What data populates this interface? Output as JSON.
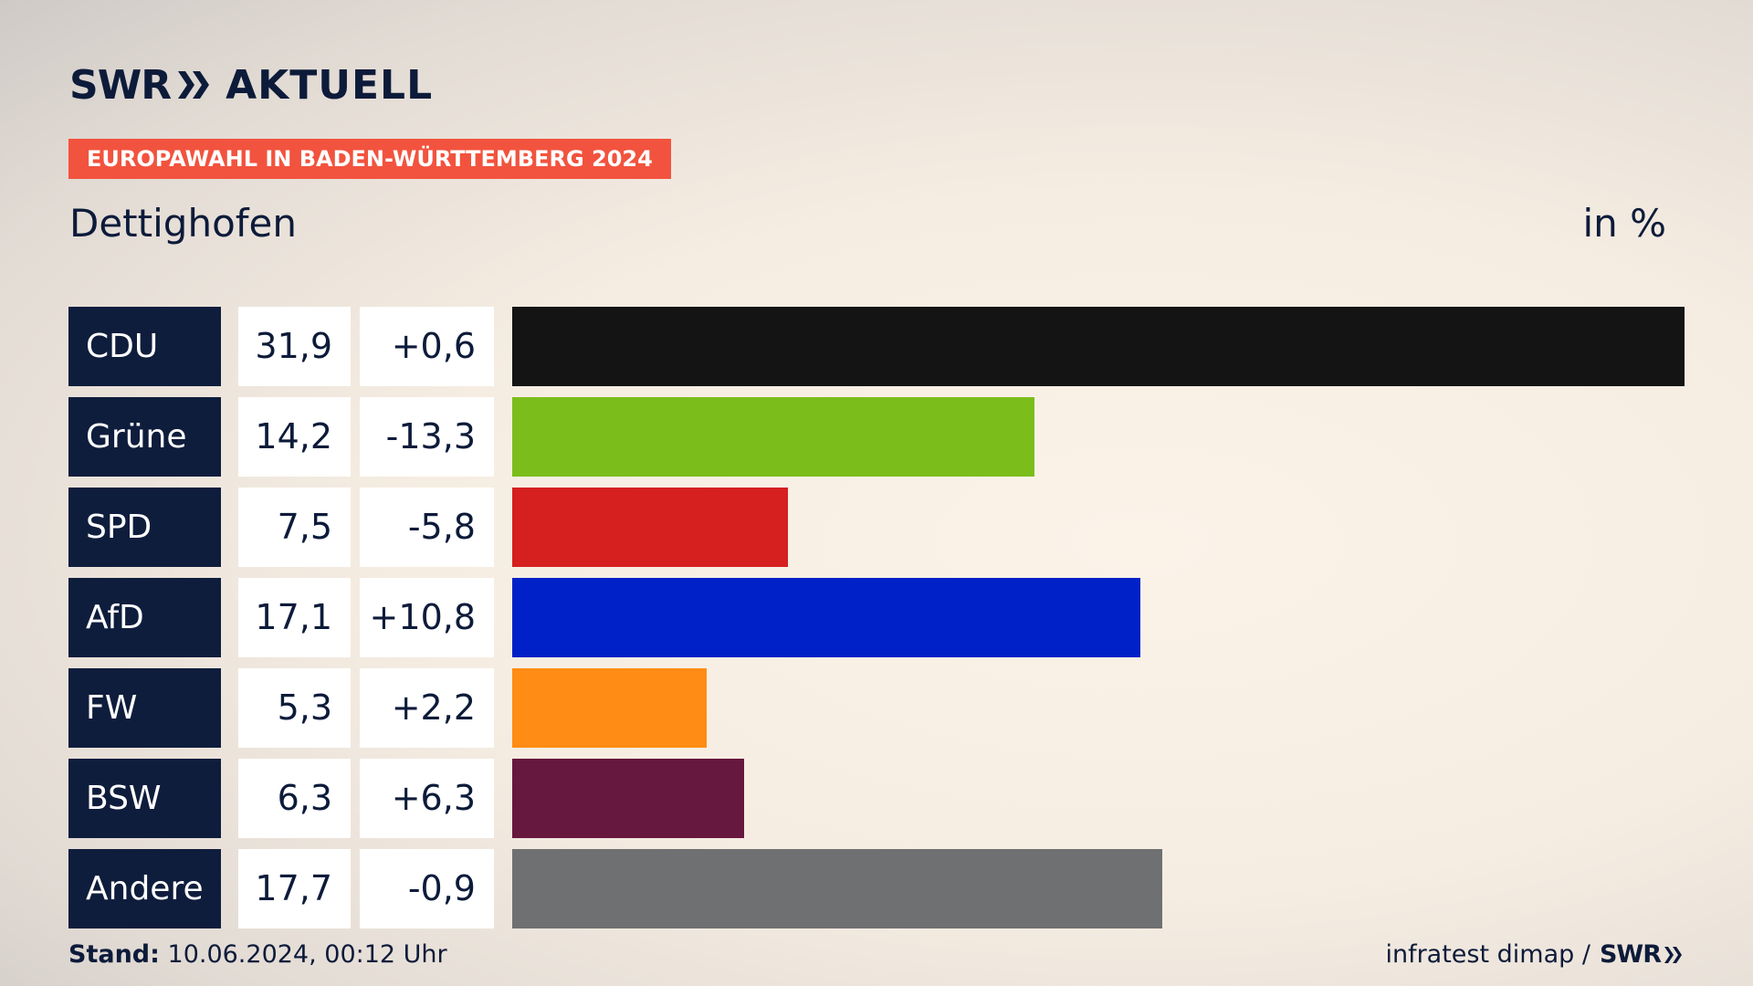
{
  "header": {
    "brand": "SWR",
    "brand_suffix": "AKTUELL",
    "banner": "EUROPAWAHL IN BADEN-WÜRTTEMBERG 2024",
    "region": "Dettighofen",
    "unit": "in %"
  },
  "footer": {
    "stand_label": "Stand:",
    "stand_value": "10.06.2024, 00:12 Uhr",
    "source": "infratest dimap /",
    "source_brand": "SWR"
  },
  "chart_data": {
    "type": "bar",
    "orientation": "horizontal",
    "categories": [
      "CDU",
      "Grüne",
      "SPD",
      "AfD",
      "FW",
      "BSW",
      "Andere"
    ],
    "values": [
      31.9,
      14.2,
      7.5,
      17.1,
      5.3,
      6.3,
      17.7
    ],
    "value_labels": [
      "31,9",
      "14,2",
      "7,5",
      "17,1",
      "5,3",
      "6,3",
      "17,7"
    ],
    "diff_labels": [
      "+0,6",
      "-13,3",
      "-5,8",
      "+10,8",
      "+2,2",
      "+6,3",
      "-0,9"
    ],
    "diffs": [
      0.6,
      -13.3,
      -5.8,
      10.8,
      2.2,
      6.3,
      -0.9
    ],
    "colors": [
      "#141414",
      "#7bbd1b",
      "#d61f1f",
      "#0021c7",
      "#ff8c14",
      "#67183e",
      "#6f7072"
    ],
    "xlim": [
      0,
      31.9
    ],
    "grid": false,
    "legend": "none"
  }
}
